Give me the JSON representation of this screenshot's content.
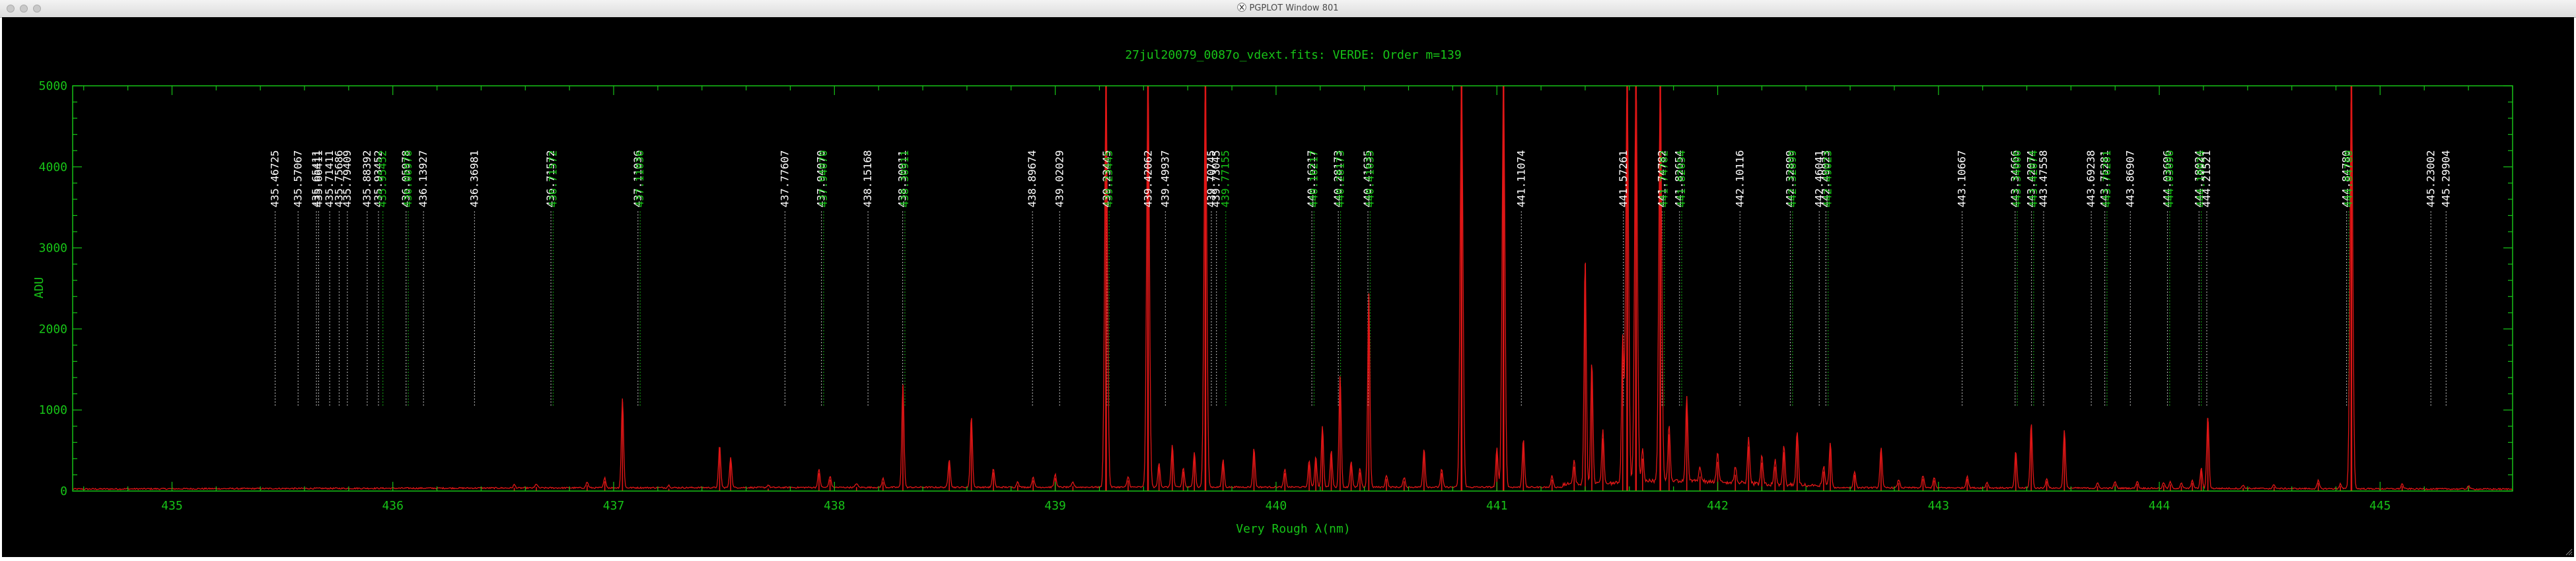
{
  "window": {
    "title": "PGPLOT Window 801"
  },
  "colors": {
    "frame": "#17c317",
    "spectrum": "#e01616",
    "lines": "#d8d8d8",
    "labels_white": "#ffffff",
    "labels_green": "#17c317"
  },
  "chart_data": {
    "type": "line",
    "title": "27jul20079_0087o_vdext.fits: VERDE: Order m=139",
    "xlabel": "Very Rough λ(nm)",
    "ylabel": "ADU",
    "xlim": [
      434.55,
      445.6
    ],
    "ylim": [
      0,
      5000
    ],
    "x_ticks": [
      435,
      436,
      437,
      438,
      439,
      440,
      441,
      442,
      443,
      444,
      445
    ],
    "y_ticks": [
      0,
      1000,
      2000,
      3000,
      4000,
      5000
    ],
    "grid": false,
    "reference_lines": [
      {
        "label": "435.46725",
        "x": 435.467,
        "green": false
      },
      {
        "label": "435.57067",
        "x": 435.571,
        "green": false
      },
      {
        "label": "435.65411",
        "x": 435.654,
        "green": false
      },
      {
        "label": "435.66411",
        "x": 435.664,
        "green": false
      },
      {
        "label": "435.71411",
        "x": 435.714,
        "green": false
      },
      {
        "label": "435.75686",
        "x": 435.757,
        "green": false
      },
      {
        "label": "435.79409",
        "x": 435.794,
        "green": false
      },
      {
        "label": "435.88392",
        "x": 435.884,
        "green": false
      },
      {
        "label": "435.93452",
        "x": 435.935,
        "green": false
      },
      {
        "label": "435.95452",
        "x": 435.955,
        "green": true
      },
      {
        "label": "436.05978",
        "x": 436.06,
        "green": false
      },
      {
        "label": "436.06978",
        "x": 436.07,
        "green": true
      },
      {
        "label": "436.13927",
        "x": 436.139,
        "green": false
      },
      {
        "label": "436.36981",
        "x": 436.37,
        "green": false
      },
      {
        "label": "436.71572",
        "x": 436.716,
        "green": false
      },
      {
        "label": "436.71572",
        "x": 436.726,
        "green": true
      },
      {
        "label": "437.11036",
        "x": 437.11,
        "green": false
      },
      {
        "label": "437.11036",
        "x": 437.12,
        "green": true
      },
      {
        "label": "437.77607",
        "x": 437.776,
        "green": false
      },
      {
        "label": "437.94070",
        "x": 437.941,
        "green": false
      },
      {
        "label": "437.94070",
        "x": 437.951,
        "green": true
      },
      {
        "label": "438.15168",
        "x": 438.152,
        "green": false
      },
      {
        "label": "438.30911",
        "x": 438.309,
        "green": false
      },
      {
        "label": "438.30911",
        "x": 438.319,
        "green": true
      },
      {
        "label": "438.89674",
        "x": 438.897,
        "green": false
      },
      {
        "label": "439.02029",
        "x": 439.02,
        "green": false
      },
      {
        "label": "439.23445",
        "x": 439.234,
        "green": false
      },
      {
        "label": "439.23445",
        "x": 439.244,
        "green": true
      },
      {
        "label": "439.42062",
        "x": 439.421,
        "green": false
      },
      {
        "label": "439.49937",
        "x": 439.499,
        "green": false
      },
      {
        "label": "439.70745",
        "x": 439.707,
        "green": false
      },
      {
        "label": "439.73045",
        "x": 439.73,
        "green": false
      },
      {
        "label": "439.77155",
        "x": 439.772,
        "green": true
      },
      {
        "label": "440.16217",
        "x": 440.162,
        "green": false
      },
      {
        "label": "440.16217",
        "x": 440.172,
        "green": true
      },
      {
        "label": "440.28173",
        "x": 440.282,
        "green": false
      },
      {
        "label": "440.28173",
        "x": 440.292,
        "green": true
      },
      {
        "label": "440.41635",
        "x": 440.416,
        "green": false
      },
      {
        "label": "440.41635",
        "x": 440.426,
        "green": true
      },
      {
        "label": "441.11074",
        "x": 441.111,
        "green": false
      },
      {
        "label": "441.57261",
        "x": 441.573,
        "green": false
      },
      {
        "label": "441.74782",
        "x": 441.748,
        "green": false
      },
      {
        "label": "441.74782",
        "x": 441.758,
        "green": true
      },
      {
        "label": "441.82654",
        "x": 441.827,
        "green": false
      },
      {
        "label": "441.82654",
        "x": 441.837,
        "green": true
      },
      {
        "label": "442.10116",
        "x": 442.101,
        "green": false
      },
      {
        "label": "442.32899",
        "x": 442.329,
        "green": false
      },
      {
        "label": "442.32899",
        "x": 442.339,
        "green": true
      },
      {
        "label": "442.46041",
        "x": 442.46,
        "green": false
      },
      {
        "label": "442.49023",
        "x": 442.49,
        "green": false
      },
      {
        "label": "442.49023",
        "x": 442.5,
        "green": true
      },
      {
        "label": "443.10667",
        "x": 443.107,
        "green": false
      },
      {
        "label": "443.34666",
        "x": 443.347,
        "green": false
      },
      {
        "label": "443.34666",
        "x": 443.357,
        "green": true
      },
      {
        "label": "443.42074",
        "x": 443.421,
        "green": false
      },
      {
        "label": "443.42074",
        "x": 443.431,
        "green": true
      },
      {
        "label": "443.47558",
        "x": 443.476,
        "green": false
      },
      {
        "label": "443.69238",
        "x": 443.692,
        "green": false
      },
      {
        "label": "443.75281",
        "x": 443.753,
        "green": false
      },
      {
        "label": "443.76281",
        "x": 443.763,
        "green": true
      },
      {
        "label": "443.86907",
        "x": 443.869,
        "green": false
      },
      {
        "label": "444.03696",
        "x": 444.037,
        "green": false
      },
      {
        "label": "444.03696",
        "x": 444.047,
        "green": true
      },
      {
        "label": "444.18024",
        "x": 444.18,
        "green": false
      },
      {
        "label": "444.18024",
        "x": 444.19,
        "green": true
      },
      {
        "label": "444.21521",
        "x": 444.215,
        "green": false
      },
      {
        "label": "444.84780",
        "x": 444.848,
        "green": false
      },
      {
        "label": "444.84780",
        "x": 444.858,
        "green": true
      },
      {
        "label": "445.23002",
        "x": 445.23,
        "green": false
      },
      {
        "label": "445.29904",
        "x": 445.299,
        "green": false
      }
    ],
    "peaks": [
      [
        436.55,
        40
      ],
      [
        436.65,
        50
      ],
      [
        436.88,
        70
      ],
      [
        436.96,
        120
      ],
      [
        437.04,
        1100
      ],
      [
        437.25,
        30
      ],
      [
        437.48,
        520
      ],
      [
        437.53,
        380
      ],
      [
        437.7,
        30
      ],
      [
        437.93,
        220
      ],
      [
        437.98,
        140
      ],
      [
        438.1,
        50
      ],
      [
        438.22,
        110
      ],
      [
        438.31,
        1280
      ],
      [
        438.52,
        350
      ],
      [
        438.62,
        880
      ],
      [
        438.72,
        230
      ],
      [
        438.83,
        70
      ],
      [
        438.9,
        130
      ],
      [
        439.0,
        160
      ],
      [
        439.08,
        60
      ],
      [
        439.23,
        5000
      ],
      [
        439.33,
        130
      ],
      [
        439.42,
        5000
      ],
      [
        439.47,
        300
      ],
      [
        439.53,
        520
      ],
      [
        439.58,
        240
      ],
      [
        439.63,
        440
      ],
      [
        439.68,
        5000
      ],
      [
        439.76,
        340
      ],
      [
        439.9,
        480
      ],
      [
        440.04,
        220
      ],
      [
        440.15,
        330
      ],
      [
        440.18,
        380
      ],
      [
        440.21,
        760
      ],
      [
        440.25,
        450
      ],
      [
        440.29,
        1400
      ],
      [
        440.34,
        320
      ],
      [
        440.38,
        230
      ],
      [
        440.42,
        2400
      ],
      [
        440.5,
        150
      ],
      [
        440.58,
        120
      ],
      [
        440.67,
        480
      ],
      [
        440.75,
        220
      ],
      [
        440.84,
        5000
      ],
      [
        441.0,
        480
      ],
      [
        441.03,
        5000
      ],
      [
        441.12,
        600
      ],
      [
        441.25,
        140
      ],
      [
        441.35,
        300
      ],
      [
        441.4,
        2800
      ],
      [
        441.43,
        1500
      ],
      [
        441.48,
        650
      ],
      [
        441.57,
        1800
      ],
      [
        441.59,
        5000
      ],
      [
        441.63,
        5000
      ],
      [
        441.66,
        400
      ],
      [
        441.74,
        5000
      ],
      [
        441.78,
        700
      ],
      [
        441.86,
        1050
      ],
      [
        441.92,
        180
      ],
      [
        442.0,
        360
      ],
      [
        442.08,
        200
      ],
      [
        442.14,
        550
      ],
      [
        442.2,
        350
      ],
      [
        442.26,
        300
      ],
      [
        442.3,
        480
      ],
      [
        442.36,
        680
      ],
      [
        442.48,
        240
      ],
      [
        442.51,
        550
      ],
      [
        442.62,
        200
      ],
      [
        442.74,
        500
      ],
      [
        442.82,
        100
      ],
      [
        442.93,
        150
      ],
      [
        442.98,
        130
      ],
      [
        443.13,
        150
      ],
      [
        443.22,
        70
      ],
      [
        443.35,
        450
      ],
      [
        443.42,
        800
      ],
      [
        443.49,
        120
      ],
      [
        443.57,
        720
      ],
      [
        443.72,
        60
      ],
      [
        443.8,
        80
      ],
      [
        443.9,
        90
      ],
      [
        444.02,
        70
      ],
      [
        444.05,
        80
      ],
      [
        444.1,
        60
      ],
      [
        444.15,
        100
      ],
      [
        444.19,
        250
      ],
      [
        444.22,
        900
      ],
      [
        444.38,
        40
      ],
      [
        444.52,
        50
      ],
      [
        444.72,
        100
      ],
      [
        444.82,
        60
      ],
      [
        444.87,
        5000
      ],
      [
        445.1,
        60
      ],
      [
        445.4,
        40
      ]
    ]
  }
}
